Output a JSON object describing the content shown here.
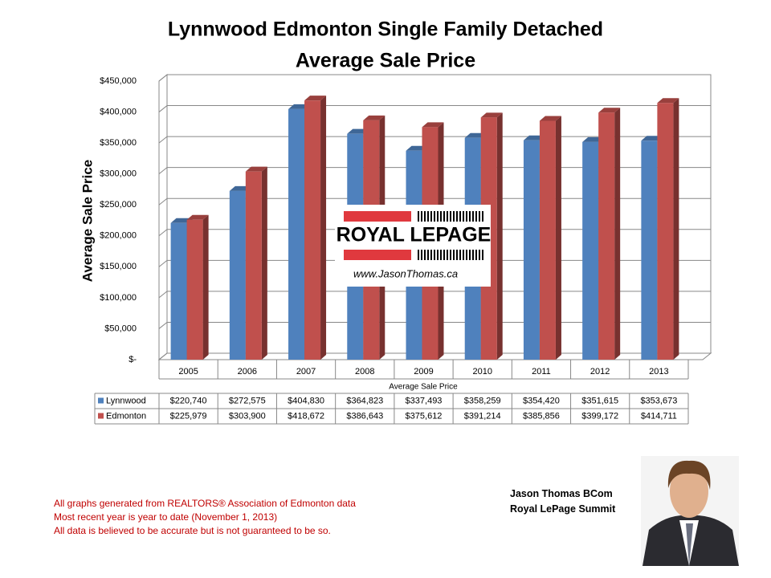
{
  "chart_data": {
    "type": "bar",
    "title": [
      "Lynnwood Edmonton Single Family Detached",
      "Average Sale Price"
    ],
    "y_label": "Average Sale Price",
    "x_label": "Average Sale Price",
    "categories": [
      "2005",
      "2006",
      "2007",
      "2008",
      "2009",
      "2010",
      "2011",
      "2012",
      "2013"
    ],
    "series": [
      {
        "name": "Lynnwood",
        "color": "#4f81bd",
        "values": [
          220740,
          272575,
          404830,
          364823,
          337493,
          358259,
          354420,
          351615,
          353673
        ],
        "value_labels": [
          "$220,740",
          "$272,575",
          "$404,830",
          "$364,823",
          "$337,493",
          "$358,259",
          "$354,420",
          "$351,615",
          "$353,673"
        ]
      },
      {
        "name": "Edmonton",
        "color": "#c0504d",
        "values": [
          225979,
          303900,
          418672,
          386643,
          375612,
          391214,
          385856,
          399172,
          414711
        ],
        "value_labels": [
          "$225,979",
          "$303,900",
          "$418,672",
          "$386,643",
          "$375,612",
          "$391,214",
          "$385,856",
          "$399,172",
          "$414,711"
        ]
      }
    ],
    "ylim": [
      0,
      450000
    ],
    "yticks": [
      {
        "value": 0,
        "label": "$-"
      },
      {
        "value": 50000,
        "label": "$50,000"
      },
      {
        "value": 100000,
        "label": "$100,000"
      },
      {
        "value": 150000,
        "label": "$150,000"
      },
      {
        "value": 200000,
        "label": "$200,000"
      },
      {
        "value": 250000,
        "label": "$250,000"
      },
      {
        "value": 300000,
        "label": "$300,000"
      },
      {
        "value": 350000,
        "label": "$350,000"
      },
      {
        "value": 400000,
        "label": "$400,000"
      },
      {
        "value": 450000,
        "label": "$450,000"
      }
    ],
    "grid": true,
    "logo": {
      "brand": "ROYAL LEPAGE",
      "url": "www.JasonThomas.ca"
    },
    "footnotes": [
      "All graphs generated from REALTORS® Association of Edmonton data",
      "Most recent year is year to date (November 1, 2013)",
      "All data is believed to be accurate but is not guaranteed to be so."
    ],
    "author": [
      "Jason Thomas BCom",
      "Royal LePage Summit"
    ]
  }
}
